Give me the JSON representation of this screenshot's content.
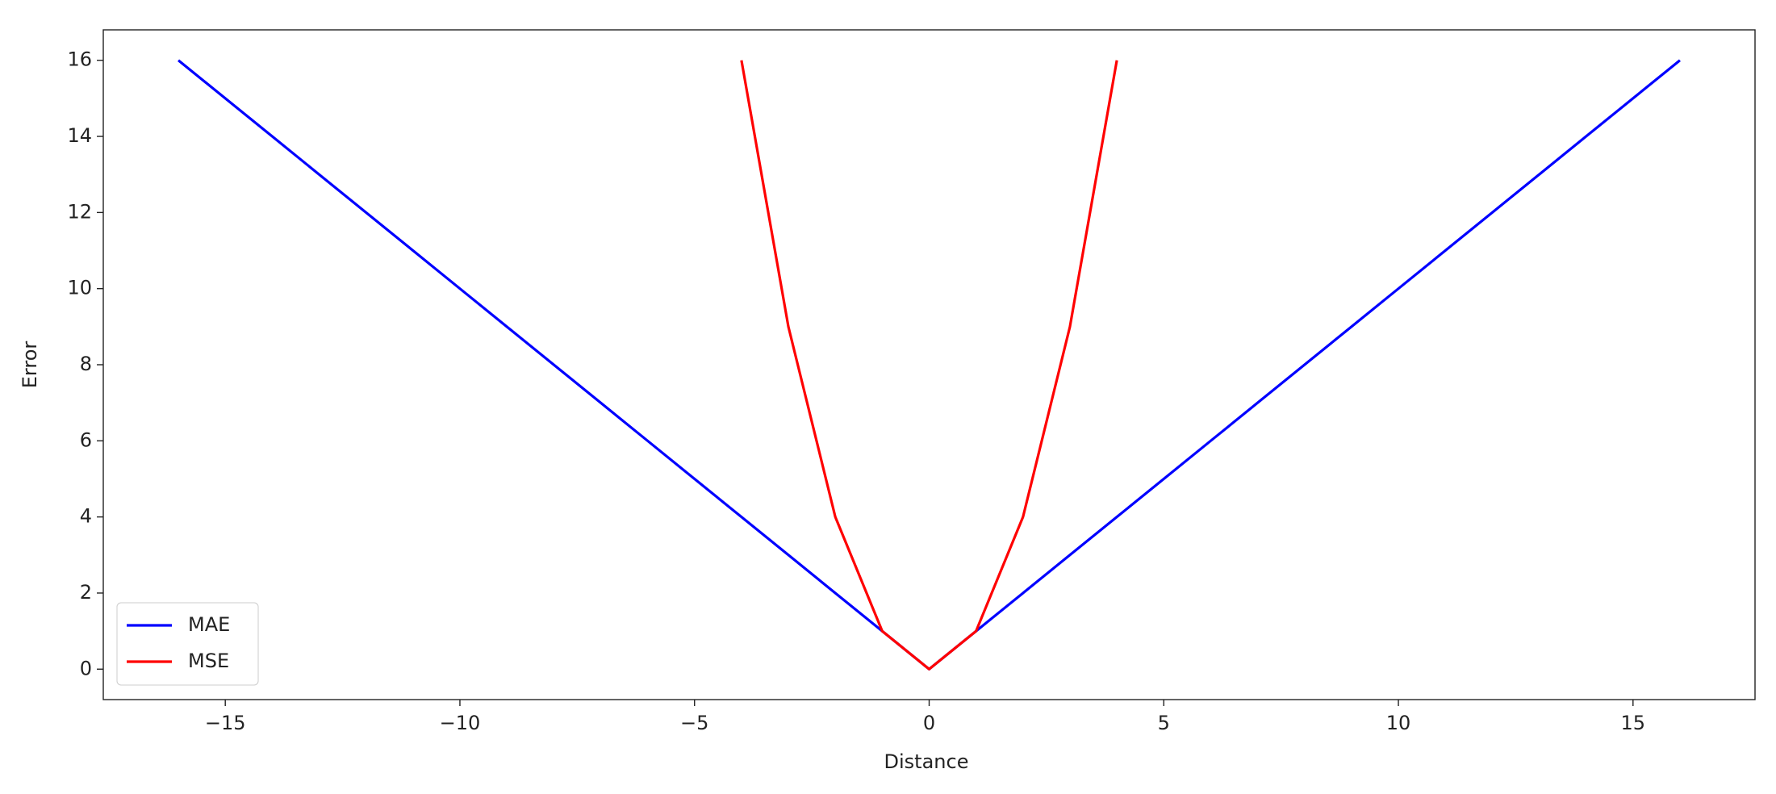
{
  "chart_data": {
    "type": "line",
    "x_label": "Distance",
    "y_label": "Error",
    "series": [
      {
        "name": "MAE",
        "color": "#0000ff",
        "x": [
          -16,
          -15,
          -14,
          -13,
          -12,
          -11,
          -10,
          -9,
          -8,
          -7,
          -6,
          -5,
          -4,
          -3,
          -2,
          -1,
          0,
          1,
          2,
          3,
          4,
          5,
          6,
          7,
          8,
          9,
          10,
          11,
          12,
          13,
          14,
          15,
          16
        ],
        "values": [
          16,
          15,
          14,
          13,
          12,
          11,
          10,
          9,
          8,
          7,
          6,
          5,
          4,
          3,
          2,
          1,
          0,
          1,
          2,
          3,
          4,
          5,
          6,
          7,
          8,
          9,
          10,
          11,
          12,
          13,
          14,
          15,
          16
        ]
      },
      {
        "name": "MSE",
        "color": "#ff0000",
        "x": [
          -4,
          -3,
          -2,
          -1,
          0,
          1,
          2,
          3,
          4
        ],
        "values": [
          16,
          9,
          4,
          1,
          0,
          1,
          4,
          9,
          16
        ]
      }
    ],
    "xlim": [
      -17.6,
      17.6
    ],
    "xticks": [
      {
        "value": -15,
        "label": "−15"
      },
      {
        "value": -10,
        "label": "−10"
      },
      {
        "value": -5,
        "label": "−5"
      },
      0,
      5,
      10,
      15
    ],
    "ylim": [
      -0.8,
      16.8
    ],
    "yticks": [
      0,
      2,
      4,
      6,
      8,
      10,
      12,
      14,
      16
    ],
    "grid": false,
    "legend": "lower left"
  }
}
